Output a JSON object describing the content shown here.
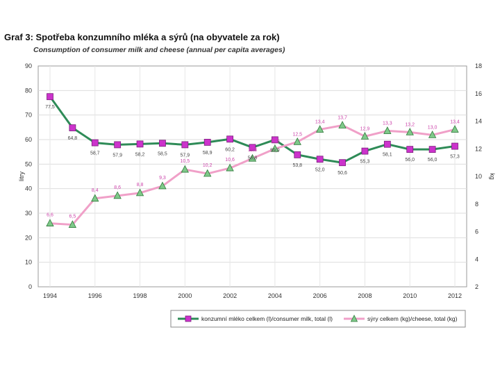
{
  "title": "Graf 3: Spotřeba konzumního mléka a sýrů (na obyvatele za rok)",
  "subtitle": "Consumption of consumer milk and cheese (annual per capita averages)",
  "chart_data": {
    "type": "line",
    "title": "Graf 3: Spotřeba konzumního mléka a sýrů (na obyvatele za rok)",
    "subtitle": "Consumption of consumer milk and cheese (annual per capita averages)",
    "x": [
      1994,
      1995,
      1996,
      1997,
      1998,
      1999,
      2000,
      2001,
      2002,
      2003,
      2004,
      2005,
      2006,
      2007,
      2008,
      2009,
      2010,
      2011,
      2012
    ],
    "x_ticks": [
      "1994",
      "1996",
      "1998",
      "2000",
      "2002",
      "2004",
      "2006",
      "2008",
      "2010",
      "2012"
    ],
    "ylabel": "litry",
    "y2label": "kg",
    "ylim": [
      0,
      90
    ],
    "y2lim": [
      2,
      18
    ],
    "y_ticks": [
      "0",
      "10",
      "20",
      "30",
      "40",
      "50",
      "60",
      "70",
      "80",
      "90"
    ],
    "y2_ticks": [
      "2",
      "4",
      "6",
      "8",
      "10",
      "12",
      "14",
      "16",
      "18"
    ],
    "grid": true,
    "legend_position": "bottom-right",
    "series": [
      {
        "name": "konzumní mléko celkem (l)/consumer milk, total (l)",
        "axis": "left",
        "color": "#2e8b57",
        "marker_color": "#cc33cc",
        "marker": "square",
        "values": [
          77.5,
          64.8,
          58.7,
          57.9,
          58.2,
          58.5,
          57.9,
          58.9,
          60.2,
          56.8,
          59.9,
          53.8,
          52.0,
          50.6,
          55.3,
          58.1,
          56.0,
          56.0,
          57.3
        ],
        "labels": [
          "77,5",
          "64,8",
          "58,7",
          "57,9",
          "58,2",
          "58,5",
          "57,9",
          "58,9",
          "60,2",
          "56,8",
          "59,9",
          "53,8",
          "52,0",
          "50,6",
          "55,3",
          "58,1",
          "56,0",
          "56,0",
          "57,3"
        ]
      },
      {
        "name": "sýry celkem (kg)/cheese, total (kg)",
        "axis": "right",
        "color": "#f0a0c8",
        "marker_color": "#7fc98a",
        "marker": "triangle",
        "values": [
          6.6,
          6.5,
          8.4,
          8.6,
          8.8,
          9.3,
          10.5,
          10.2,
          10.6,
          11.3,
          12.0,
          12.5,
          13.4,
          13.7,
          12.9,
          13.3,
          13.2,
          13.0,
          13.4
        ],
        "labels": [
          "6,6",
          "6,5",
          "8,4",
          "8,6",
          "8,8",
          "9,3",
          "10,5",
          "10,2",
          "10,6",
          "11,3",
          "12,0",
          "12,5",
          "13,4",
          "13,7",
          "12,9",
          "13,3",
          "13,2",
          "13,0",
          "13,4"
        ]
      }
    ]
  }
}
